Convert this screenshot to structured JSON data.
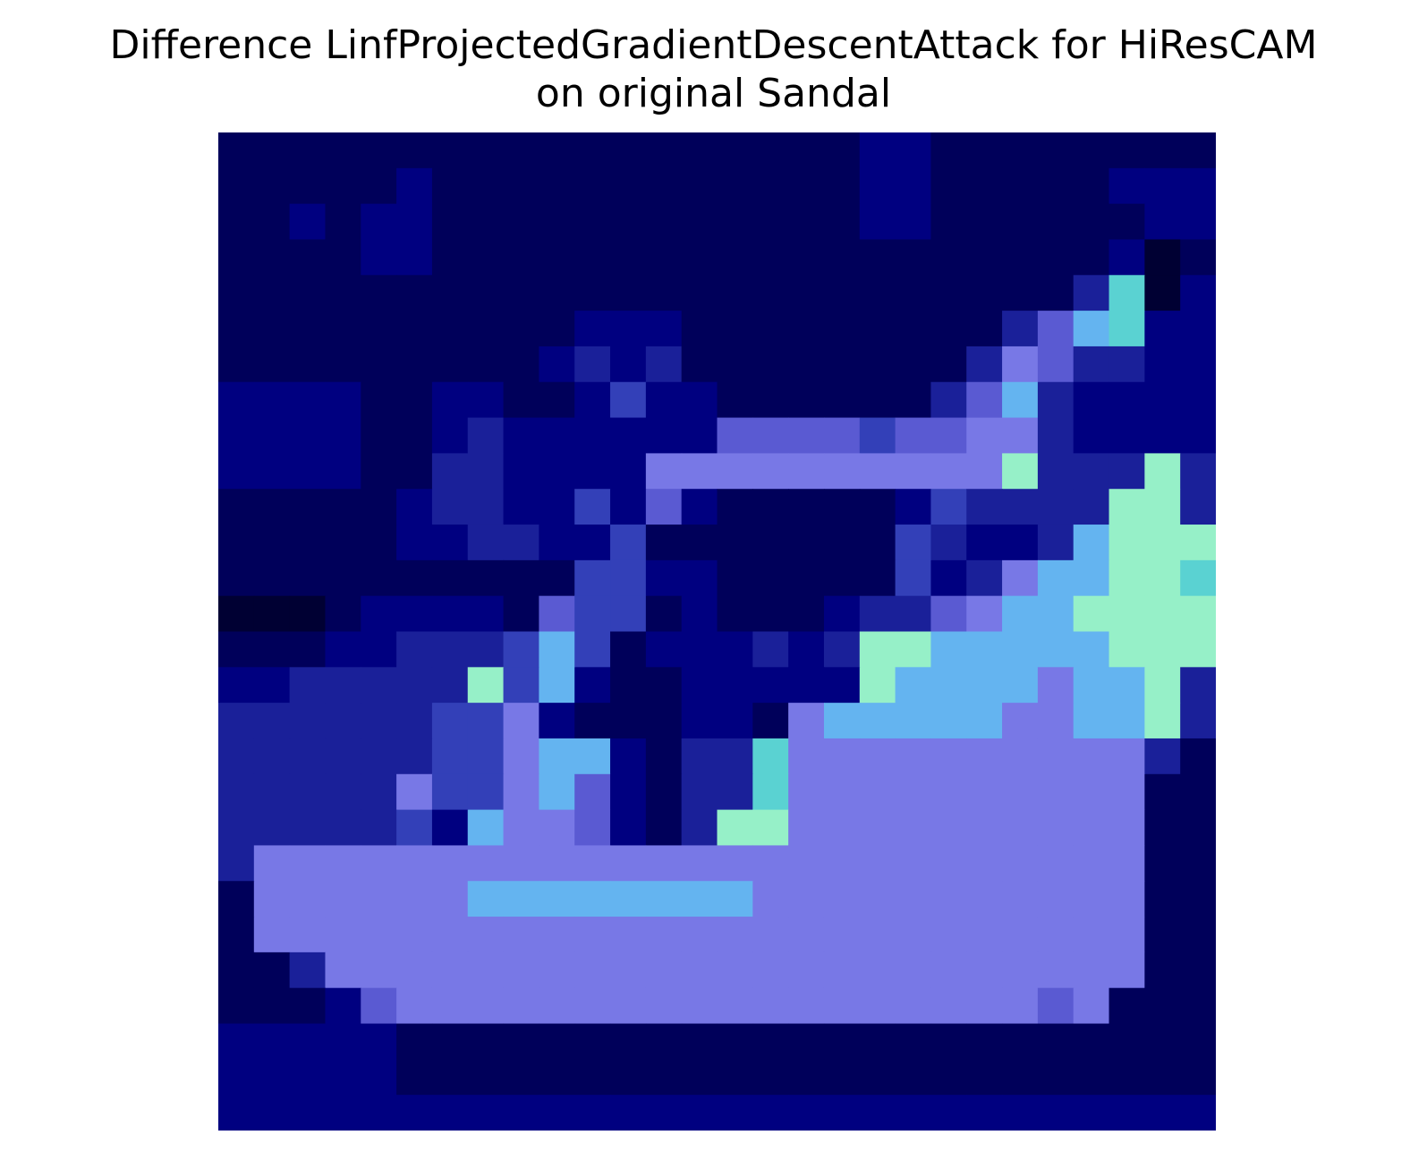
{
  "title": {
    "line1": "Difference LinfProjectedGradientDescentAttack for HiResCAM",
    "line2": "on original Sandal"
  },
  "chart_data": {
    "type": "heatmap",
    "title": "Difference LinfProjectedGradientDescentAttack for HiResCAM on original Sandal",
    "rows": 28,
    "cols": 28,
    "axes_visible": false,
    "palette": [
      "#000033",
      "#00005a",
      "#000080",
      "#1a2099",
      "#3340b8",
      "#5a5ad2",
      "#7878e6",
      "#64b4f0",
      "#5ad2d2",
      "#96f0c8",
      "#288c82",
      "#4a7a2a"
    ],
    "cells": [
      "1111111111111111112211111111",
      "1111121111111111112211111222",
      "1121221111111111112211111122",
      "1111221111111111111111111201",
      "1111111111111111111111113802",
      "1111111111222111111111357822",
      "1111111112323111111113653322",
      "2222112211242211111135732222",
      "2222112322222255554556632222",
      "2222113322226666666666933393",
      "1111123322425211111243333993",
      "1111122332241111111432237999",
      "1111111111442211111423677998",
      "0001222215441211123356779999",
      "1112233347412223239977777999",
      "2233333947211222229777767793",
      "3333334462111221677777667793",
      "3333334467721338666666666631",
      "3333364467521338666666666611",
      "3333342766521399666666666611",
      "3666666666666666666666666611",
      "1666666777777776666666666611",
      "1666666666666666666666666611",
      "1136666666666666666666666611",
      "1112566666666666666666656111",
      "2222211111111111111111111111",
      "2222211111111111111111111111",
      "2222222222222222222222222222"
    ]
  }
}
